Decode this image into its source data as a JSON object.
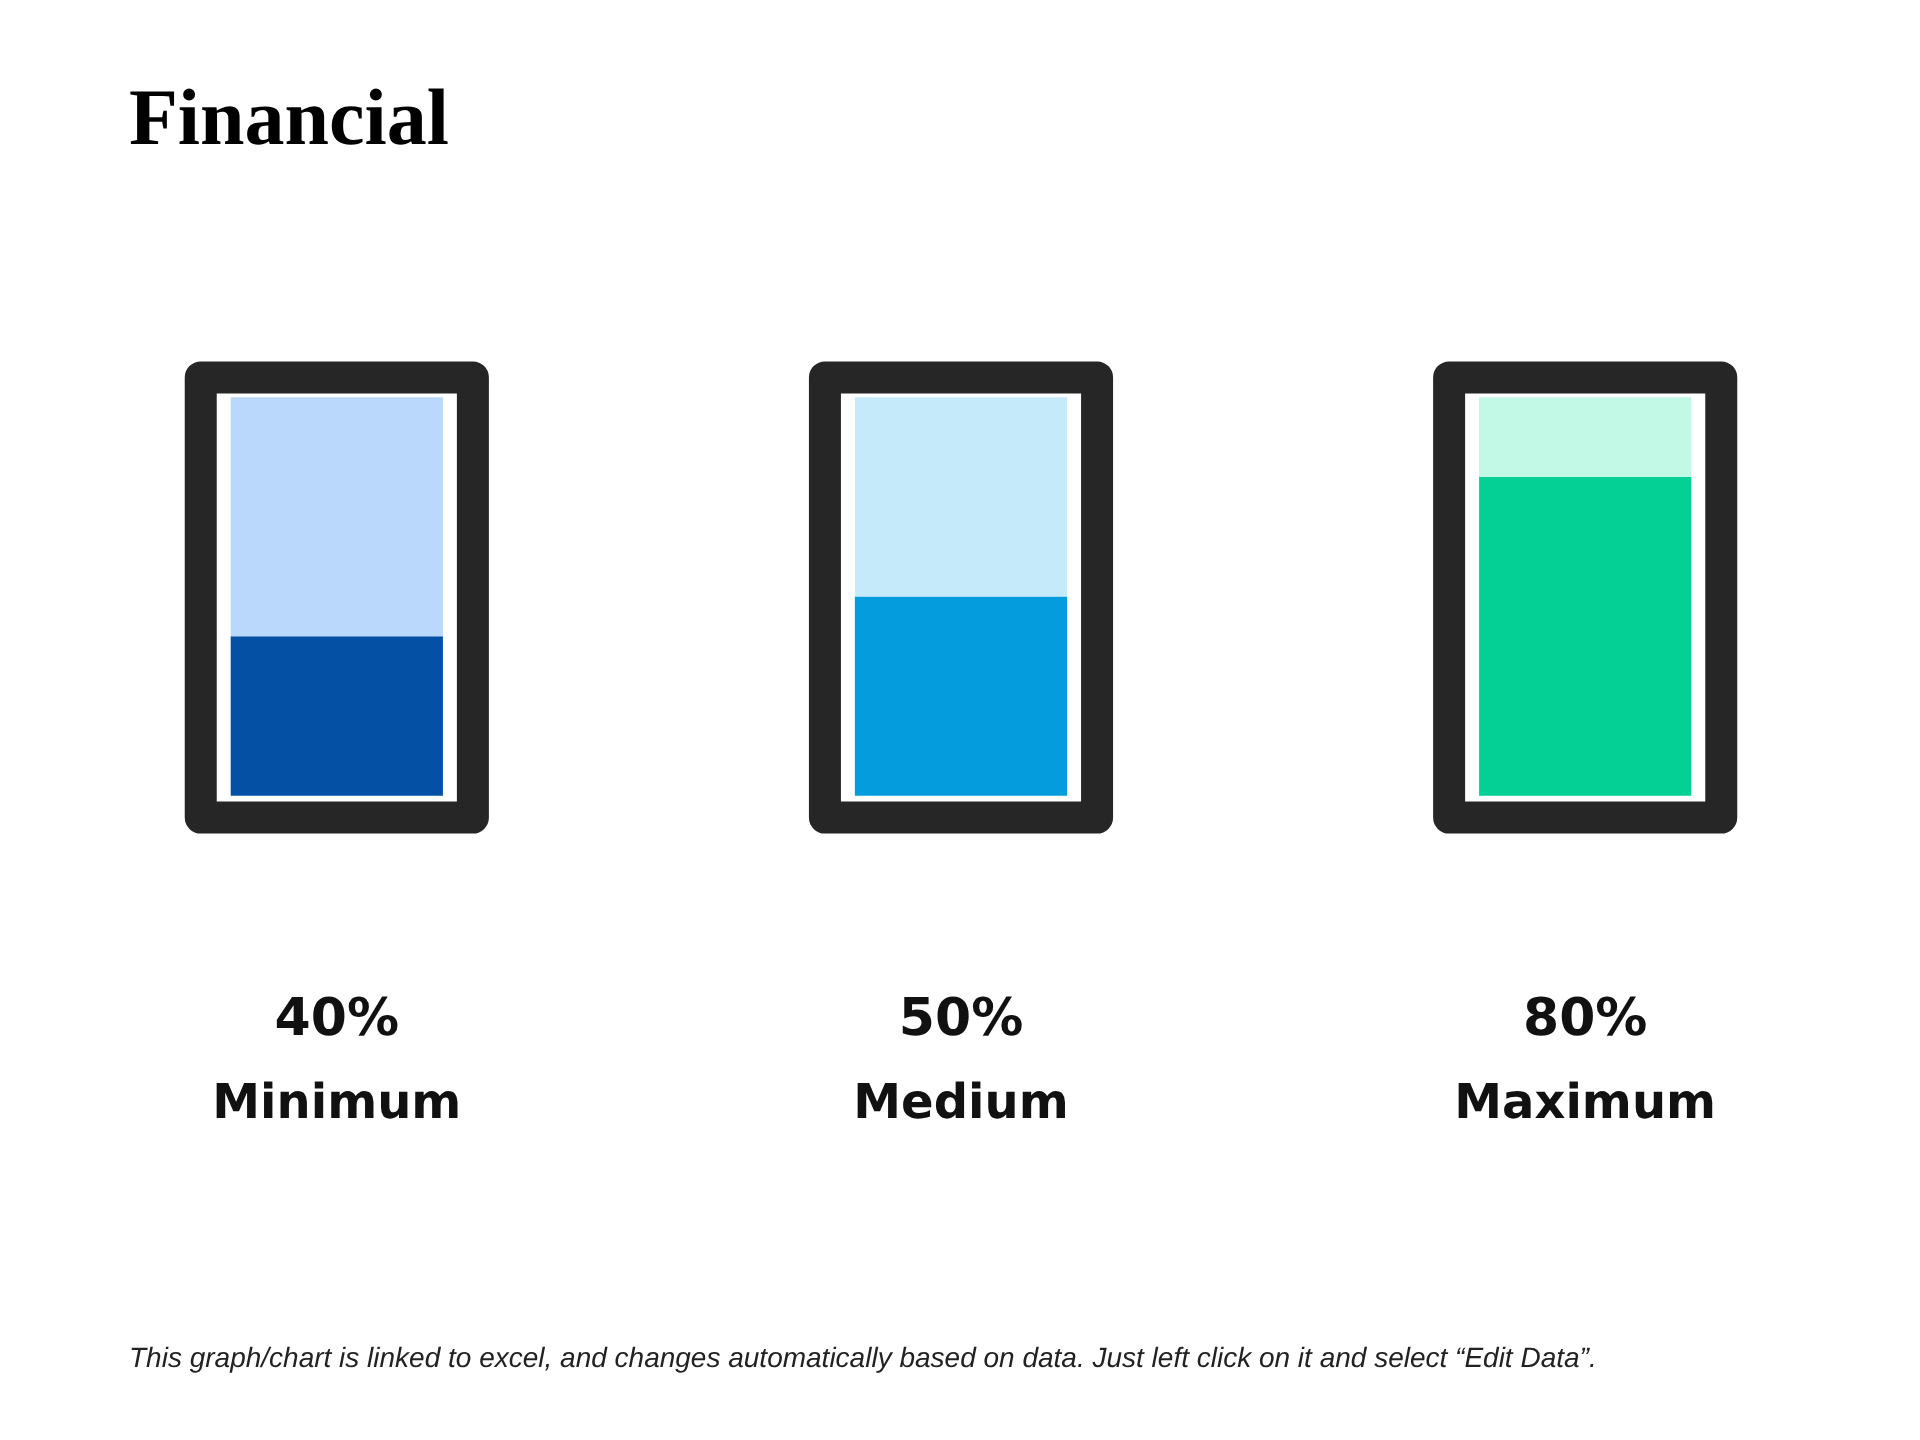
{
  "chart_data": {
    "type": "bar",
    "stacked": true,
    "title": "Financial",
    "categories": [
      "Minimum",
      "Medium",
      "Maximum"
    ],
    "series": [
      {
        "colors": [
          "#0450a5",
          "#049cdc",
          "#04cf94"
        ],
        "values": [
          40,
          50,
          80
        ],
        "value_labels": [
          "40%",
          "50%",
          "80%"
        ]
      },
      {
        "colors": [
          "#b9d8fb",
          "#c5eafa",
          "#c1f8e6"
        ],
        "values": [
          60,
          50,
          20
        ]
      }
    ],
    "annotations": [
      "This graph/chart is linked to excel, and changes automatically based on data. Just left click on it and select “Edit Data”."
    ]
  }
}
